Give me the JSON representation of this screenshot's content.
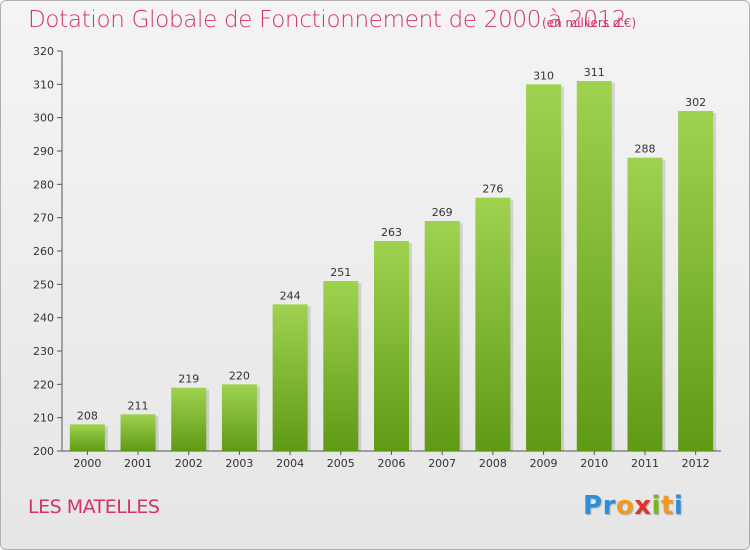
{
  "chart_data": {
    "type": "bar",
    "title": "Dotation Globale de Fonctionnement de 2000 à 2012",
    "subtitle": "(en milliers d'€)",
    "categories": [
      "2000",
      "2001",
      "2002",
      "2003",
      "2004",
      "2005",
      "2006",
      "2007",
      "2008",
      "2009",
      "2010",
      "2011",
      "2012"
    ],
    "values": [
      208,
      211,
      219,
      220,
      244,
      251,
      263,
      269,
      276,
      310,
      311,
      288,
      302
    ],
    "ylim": [
      200,
      320
    ],
    "yticks": [
      200,
      210,
      220,
      230,
      240,
      250,
      260,
      270,
      280,
      290,
      300,
      310,
      320
    ],
    "grid": false,
    "bar_color": "#7fbf2a"
  },
  "footer": {
    "commune": "LES MATELLES",
    "logo_letters": [
      "P",
      "r",
      "o",
      "x",
      "i",
      "t",
      "i"
    ],
    "logo_colors": [
      "#2e8fd6",
      "#2e8fd6",
      "#f29a1f",
      "#e4322c",
      "#7ab51d",
      "#f29a1f",
      "#2e8fd6"
    ]
  }
}
